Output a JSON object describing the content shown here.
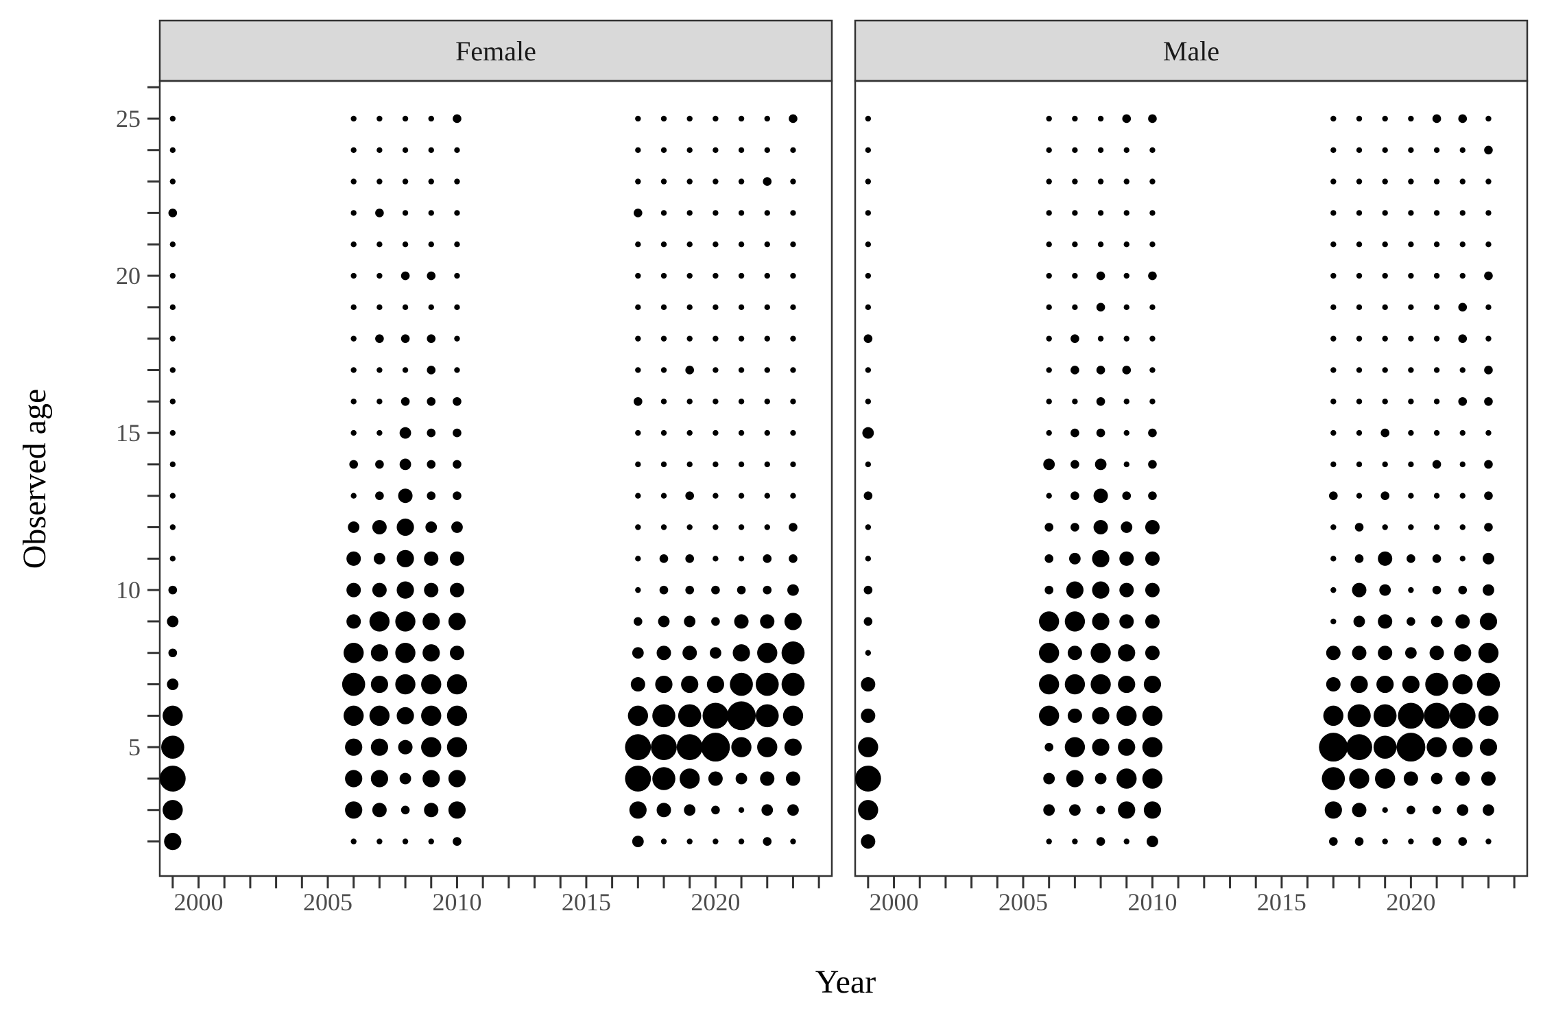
{
  "chart_data": {
    "type": "scatter",
    "encoding": "bubble",
    "xlabel": "Year",
    "ylabel": "Observed age",
    "xlim": [
      1998.5,
      2024.5
    ],
    "ylim": [
      0.9,
      26.2
    ],
    "x_ticks": [
      2000,
      2005,
      2010,
      2015,
      2020
    ],
    "y_ticks": [
      5,
      10,
      15,
      20,
      25
    ],
    "x_minor_step": 1,
    "y_minor_step": 1,
    "grid": false,
    "legend": "none",
    "point_color": "#000000",
    "strip_color": "#d9d9d9",
    "ages": [
      2,
      3,
      4,
      5,
      6,
      7,
      8,
      9,
      10,
      11,
      12,
      13,
      14,
      15,
      16,
      17,
      18,
      19,
      20,
      21,
      22,
      23,
      24,
      25
    ],
    "panels": [
      {
        "label": "Female",
        "series": [
          {
            "year": 1999,
            "sizes": [
              6,
              7,
              9,
              8,
              7,
              4,
              3,
              4,
              3,
              2,
              2,
              2,
              2,
              2,
              2,
              2,
              2,
              2,
              2,
              2,
              3,
              2,
              2,
              2
            ]
          },
          {
            "year": 2006,
            "sizes": [
              2,
              6,
              6,
              6,
              7,
              8,
              7,
              5,
              5,
              5,
              4,
              2,
              3,
              2,
              2,
              2,
              2,
              2,
              2,
              2,
              2,
              2,
              2,
              2
            ]
          },
          {
            "year": 2007,
            "sizes": [
              2,
              5,
              6,
              6,
              7,
              6,
              6,
              7,
              5,
              4,
              5,
              3,
              3,
              2,
              2,
              2,
              3,
              2,
              2,
              2,
              3,
              2,
              2,
              2
            ]
          },
          {
            "year": 2008,
            "sizes": [
              2,
              3,
              4,
              5,
              6,
              7,
              7,
              7,
              6,
              6,
              6,
              5,
              4,
              4,
              3,
              2,
              3,
              2,
              3,
              2,
              2,
              2,
              2,
              2
            ]
          },
          {
            "year": 2009,
            "sizes": [
              2,
              5,
              6,
              7,
              7,
              7,
              6,
              6,
              5,
              5,
              4,
              3,
              3,
              3,
              3,
              3,
              3,
              2,
              3,
              2,
              2,
              2,
              2,
              2
            ]
          },
          {
            "year": 2010,
            "sizes": [
              3,
              6,
              6,
              7,
              7,
              7,
              5,
              6,
              5,
              5,
              4,
              3,
              3,
              3,
              3,
              2,
              2,
              2,
              2,
              2,
              2,
              2,
              2,
              3
            ]
          },
          {
            "year": 2017,
            "sizes": [
              4,
              6,
              9,
              9,
              7,
              5,
              4,
              3,
              2,
              2,
              2,
              2,
              2,
              2,
              3,
              2,
              2,
              2,
              2,
              2,
              3,
              2,
              2,
              2
            ]
          },
          {
            "year": 2018,
            "sizes": [
              2,
              5,
              8,
              9,
              8,
              6,
              5,
              4,
              3,
              3,
              2,
              2,
              2,
              2,
              2,
              2,
              2,
              2,
              2,
              2,
              2,
              2,
              2,
              2
            ]
          },
          {
            "year": 2019,
            "sizes": [
              2,
              4,
              7,
              9,
              8,
              6,
              5,
              4,
              3,
              3,
              2,
              3,
              2,
              2,
              2,
              3,
              2,
              2,
              2,
              2,
              2,
              2,
              2,
              2
            ]
          },
          {
            "year": 2020,
            "sizes": [
              2,
              3,
              5,
              10,
              9,
              6,
              4,
              3,
              3,
              2,
              2,
              2,
              2,
              2,
              2,
              2,
              2,
              2,
              2,
              2,
              2,
              2,
              2,
              2
            ]
          },
          {
            "year": 2021,
            "sizes": [
              2,
              2,
              4,
              7,
              10,
              8,
              6,
              5,
              3,
              2,
              2,
              2,
              2,
              2,
              2,
              2,
              2,
              2,
              2,
              2,
              2,
              2,
              2,
              2
            ]
          },
          {
            "year": 2022,
            "sizes": [
              3,
              4,
              5,
              7,
              8,
              8,
              7,
              5,
              3,
              3,
              2,
              2,
              2,
              2,
              2,
              2,
              2,
              2,
              2,
              2,
              2,
              3,
              2,
              2
            ]
          },
          {
            "year": 2023,
            "sizes": [
              2,
              4,
              5,
              6,
              7,
              8,
              8,
              6,
              4,
              3,
              3,
              2,
              2,
              2,
              2,
              2,
              2,
              2,
              2,
              2,
              2,
              2,
              2,
              3
            ]
          }
        ]
      },
      {
        "label": "Male",
        "series": [
          {
            "year": 1999,
            "sizes": [
              5,
              7,
              9,
              7,
              5,
              5,
              2,
              3,
              3,
              2,
              2,
              3,
              2,
              4,
              2,
              2,
              3,
              2,
              2,
              2,
              2,
              2,
              2,
              2
            ]
          },
          {
            "year": 2006,
            "sizes": [
              2,
              4,
              4,
              3,
              7,
              7,
              7,
              7,
              3,
              3,
              3,
              2,
              4,
              2,
              2,
              2,
              2,
              2,
              2,
              2,
              2,
              2,
              2,
              2
            ]
          },
          {
            "year": 2007,
            "sizes": [
              2,
              4,
              6,
              7,
              5,
              7,
              5,
              7,
              6,
              4,
              3,
              3,
              3,
              3,
              2,
              3,
              3,
              2,
              2,
              2,
              2,
              2,
              2,
              2
            ]
          },
          {
            "year": 2008,
            "sizes": [
              3,
              3,
              4,
              6,
              6,
              7,
              7,
              6,
              6,
              6,
              5,
              5,
              4,
              3,
              3,
              3,
              2,
              3,
              3,
              2,
              2,
              2,
              2,
              2
            ]
          },
          {
            "year": 2009,
            "sizes": [
              2,
              6,
              7,
              6,
              7,
              6,
              6,
              5,
              5,
              5,
              4,
              3,
              2,
              2,
              2,
              3,
              2,
              2,
              2,
              2,
              2,
              2,
              2,
              3
            ]
          },
          {
            "year": 2010,
            "sizes": [
              4,
              6,
              7,
              7,
              7,
              6,
              5,
              5,
              5,
              5,
              5,
              3,
              3,
              3,
              2,
              2,
              2,
              2,
              3,
              2,
              2,
              2,
              2,
              3
            ]
          },
          {
            "year": 2017,
            "sizes": [
              3,
              6,
              8,
              10,
              7,
              5,
              5,
              2,
              2,
              2,
              2,
              3,
              2,
              2,
              2,
              2,
              2,
              2,
              2,
              2,
              2,
              2,
              2,
              2
            ]
          },
          {
            "year": 2018,
            "sizes": [
              3,
              5,
              7,
              9,
              8,
              6,
              5,
              4,
              5,
              3,
              3,
              2,
              2,
              2,
              2,
              2,
              2,
              2,
              2,
              2,
              2,
              2,
              2,
              2
            ]
          },
          {
            "year": 2019,
            "sizes": [
              2,
              2,
              7,
              8,
              8,
              6,
              5,
              5,
              4,
              5,
              2,
              3,
              2,
              3,
              2,
              2,
              2,
              2,
              2,
              2,
              2,
              2,
              2,
              2
            ]
          },
          {
            "year": 2020,
            "sizes": [
              2,
              3,
              5,
              10,
              9,
              6,
              4,
              3,
              2,
              3,
              2,
              2,
              2,
              2,
              2,
              2,
              2,
              2,
              2,
              2,
              2,
              2,
              2,
              2
            ]
          },
          {
            "year": 2021,
            "sizes": [
              3,
              3,
              4,
              7,
              9,
              8,
              5,
              4,
              3,
              3,
              2,
              2,
              3,
              2,
              2,
              2,
              2,
              2,
              2,
              2,
              2,
              2,
              2,
              3
            ]
          },
          {
            "year": 2022,
            "sizes": [
              3,
              4,
              5,
              7,
              9,
              7,
              6,
              5,
              3,
              2,
              2,
              2,
              2,
              2,
              3,
              2,
              3,
              3,
              2,
              2,
              2,
              2,
              2,
              3
            ]
          },
          {
            "year": 2023,
            "sizes": [
              2,
              4,
              5,
              6,
              7,
              8,
              7,
              6,
              4,
              4,
              3,
              3,
              3,
              2,
              3,
              3,
              2,
              2,
              3,
              2,
              2,
              2,
              3,
              2
            ]
          }
        ]
      }
    ]
  }
}
